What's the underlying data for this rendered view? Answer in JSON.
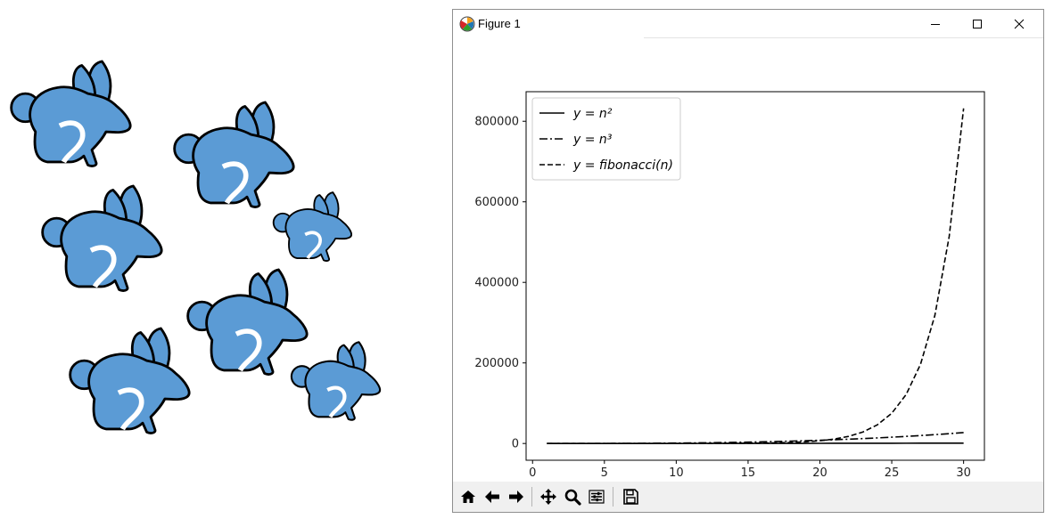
{
  "window": {
    "title": "Figure 1"
  },
  "toolbar": {
    "buttons": [
      {
        "name": "home-button",
        "icon": "home-icon"
      },
      {
        "name": "back-button",
        "icon": "arrow-left-icon"
      },
      {
        "name": "forward-button",
        "icon": "arrow-right-icon"
      },
      {
        "name": "pan-button",
        "icon": "move-icon"
      },
      {
        "name": "zoom-button",
        "icon": "magnifier-icon"
      },
      {
        "name": "configure-subplots-button",
        "icon": "sliders-icon"
      },
      {
        "name": "save-button",
        "icon": "floppy-disk-icon"
      }
    ]
  },
  "colors": {
    "rabbit_fill": "#5b9bd5",
    "rabbit_stroke": "#000000",
    "line": "#000000"
  },
  "chart_data": {
    "type": "line",
    "title": "",
    "xlabel": "",
    "ylabel": "",
    "xlim": [
      -0.45,
      31.45
    ],
    "ylim": [
      -41591,
      873431
    ],
    "xticks": [
      0,
      5,
      10,
      15,
      20,
      25,
      30
    ],
    "yticks": [
      0,
      200000,
      400000,
      600000,
      800000
    ],
    "ytick_labels": [
      "0",
      "200000",
      "400000",
      "600000",
      "800000"
    ],
    "grid": false,
    "legend_position": "top-left",
    "x": [
      1,
      2,
      3,
      4,
      5,
      6,
      7,
      8,
      9,
      10,
      11,
      12,
      13,
      14,
      15,
      16,
      17,
      18,
      19,
      20,
      21,
      22,
      23,
      24,
      25,
      26,
      27,
      28,
      29,
      30
    ],
    "series": [
      {
        "name": "y = n²",
        "style": "solid",
        "values": [
          1,
          4,
          9,
          16,
          25,
          36,
          49,
          64,
          81,
          100,
          121,
          144,
          169,
          196,
          225,
          256,
          289,
          324,
          361,
          400,
          441,
          484,
          529,
          576,
          625,
          676,
          729,
          784,
          841,
          900
        ]
      },
      {
        "name": "y = n³",
        "style": "dashdot",
        "values": [
          1,
          8,
          27,
          64,
          125,
          216,
          343,
          512,
          729,
          1000,
          1331,
          1728,
          2197,
          2744,
          3375,
          4096,
          4913,
          5832,
          6859,
          8000,
          9261,
          10648,
          12167,
          13824,
          15625,
          17576,
          19683,
          21952,
          24389,
          27000
        ]
      },
      {
        "name": "y = fibonacci(n)",
        "style": "dashed",
        "values": [
          1,
          1,
          2,
          3,
          5,
          8,
          13,
          21,
          34,
          55,
          89,
          144,
          233,
          377,
          610,
          987,
          1597,
          2584,
          4181,
          6765,
          10946,
          17711,
          28657,
          46368,
          75025,
          121393,
          196418,
          317811,
          514229,
          832040
        ]
      }
    ]
  }
}
